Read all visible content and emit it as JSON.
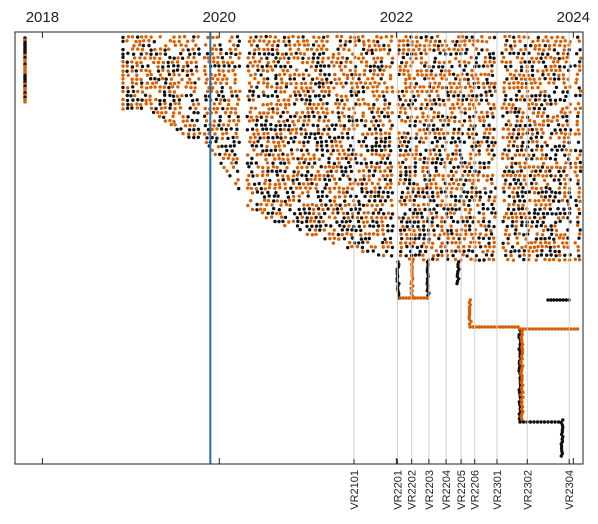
{
  "chart_data": {
    "type": "scatter",
    "title": "",
    "xlabel": "",
    "ylabel": "",
    "x_axis": {
      "type": "date",
      "range": [
        "2017-09-10",
        "2024-02-10"
      ],
      "year_ticks": [
        "2018",
        "2020",
        "2022",
        "2024"
      ],
      "grid": false
    },
    "reference_line": {
      "date": "2019-11-25",
      "color": "#1f6fb2"
    },
    "release_markers": [
      {
        "label": "VR2101",
        "date": "2021-07-10"
      },
      {
        "label": "VR2201",
        "date": "2022-01-05"
      },
      {
        "label": "VR2202",
        "date": "2022-03-05"
      },
      {
        "label": "VR2203",
        "date": "2022-05-15"
      },
      {
        "label": "VR2204",
        "date": "2022-07-25"
      },
      {
        "label": "VR2205",
        "date": "2022-09-25"
      },
      {
        "label": "VR2206",
        "date": "2022-11-20"
      },
      {
        "label": "VR2301",
        "date": "2023-02-20"
      },
      {
        "label": "VR2302",
        "date": "2023-06-25"
      },
      {
        "label": "VR2304",
        "date": "2023-12-15"
      }
    ],
    "series": [
      {
        "color": "#d95f02"
      },
      {
        "color": "#111111"
      }
    ]
  }
}
